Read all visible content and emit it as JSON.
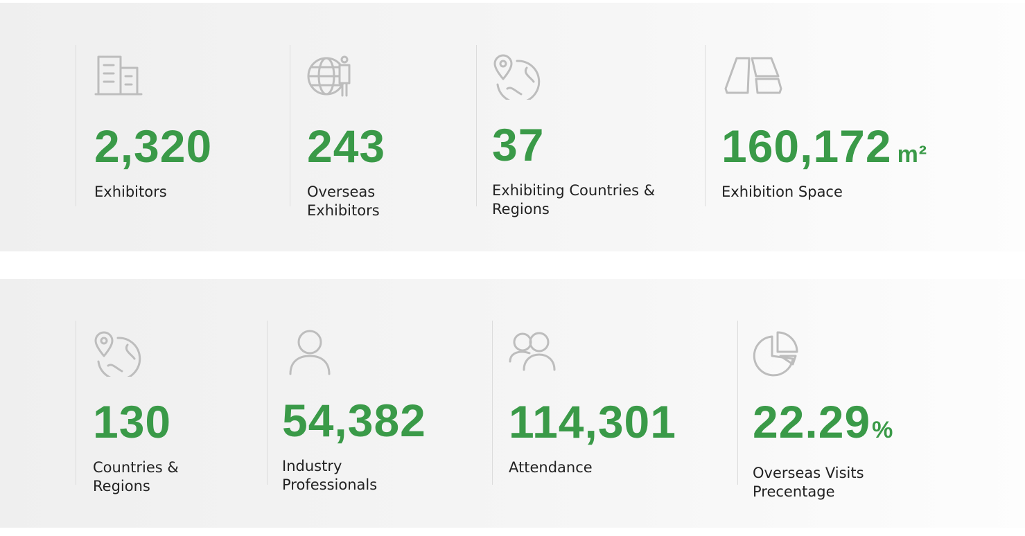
{
  "rows": [
    {
      "stats": [
        {
          "value": "2,320",
          "label": "Exhibitors"
        },
        {
          "value": "243",
          "label": "Overseas Exhibitors"
        },
        {
          "value": "37",
          "label": "Exhibiting Countries & Regions"
        },
        {
          "value": "160,172",
          "unit": "m²",
          "label": "Exhibition Space"
        }
      ]
    },
    {
      "stats": [
        {
          "value": "130",
          "label": "Countries & Regions"
        },
        {
          "value": "54,382",
          "label": "Industry Professionals"
        },
        {
          "value": "114,301",
          "label": "Attendance"
        },
        {
          "value": "22.29",
          "unit": "%",
          "label": "Overseas Visits Precentage"
        }
      ]
    }
  ]
}
